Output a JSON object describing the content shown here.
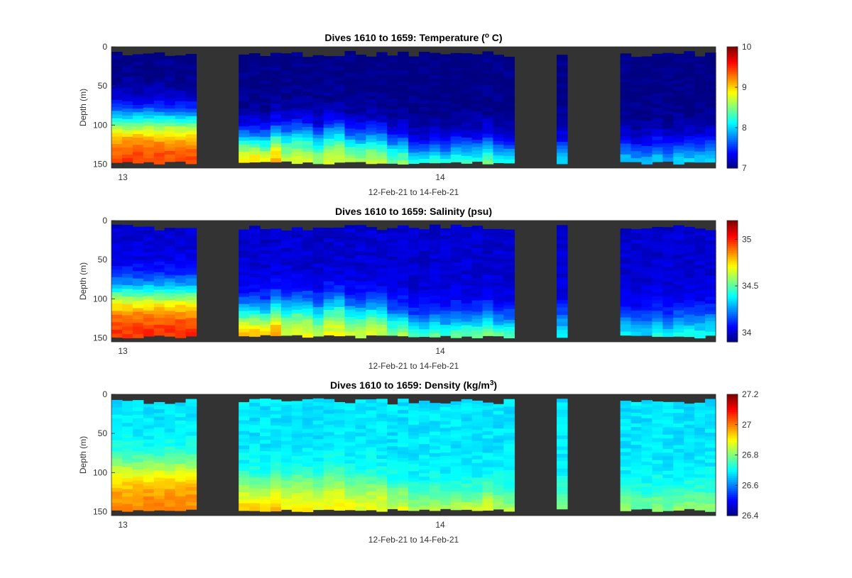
{
  "chart_data": [
    {
      "type": "heatmap",
      "title_main": "Dives 1610 to 1659: Temperature (",
      "title_sup": "o",
      "title_tail": " C)",
      "ylabel": "Depth (m)",
      "xlabel": "12-Feb-21 to 14-Feb-21",
      "x_ticks": [
        "13",
        "14"
      ],
      "y_ticks": [
        "0",
        "50",
        "100",
        "150"
      ],
      "ylim": [
        0,
        155
      ],
      "colorbar": {
        "min": 7,
        "max": 10,
        "ticks": [
          "7",
          "8",
          "9",
          "10"
        ]
      },
      "shallow_value": 7.0,
      "deep_value": 9.5,
      "columns": 57,
      "field": "temperature"
    },
    {
      "type": "heatmap",
      "title_main": "Dives 1610 to 1659: Salinity (psu)",
      "title_sup": "",
      "title_tail": "",
      "ylabel": "Depth (m)",
      "xlabel": "12-Feb-21 to 14-Feb-21",
      "x_ticks": [
        "13",
        "14"
      ],
      "y_ticks": [
        "0",
        "50",
        "100",
        "150"
      ],
      "ylim": [
        0,
        155
      ],
      "colorbar": {
        "min": 33.9,
        "max": 35.2,
        "ticks": [
          "34",
          "34.5",
          "35"
        ]
      },
      "shallow_value": 34.0,
      "deep_value": 35.0,
      "columns": 57,
      "field": "salinity"
    },
    {
      "type": "heatmap",
      "title_main": "Dives 1610 to 1659: Density (kg/m",
      "title_sup": "3",
      "title_tail": ")",
      "ylabel": "Depth (m)",
      "xlabel": "12-Feb-21 to 14-Feb-21",
      "x_ticks": [
        "13",
        "14"
      ],
      "y_ticks": [
        "0",
        "50",
        "100",
        "150"
      ],
      "ylim": [
        0,
        155
      ],
      "colorbar": {
        "min": 26.4,
        "max": 27.2,
        "ticks": [
          "26.4",
          "26.6",
          "26.8",
          "27",
          "27.2"
        ]
      },
      "shallow_value": 26.68,
      "deep_value": 27.0,
      "columns": 57,
      "field": "density"
    }
  ],
  "colors": {
    "missing": "#333333",
    "axis": "#262626"
  }
}
